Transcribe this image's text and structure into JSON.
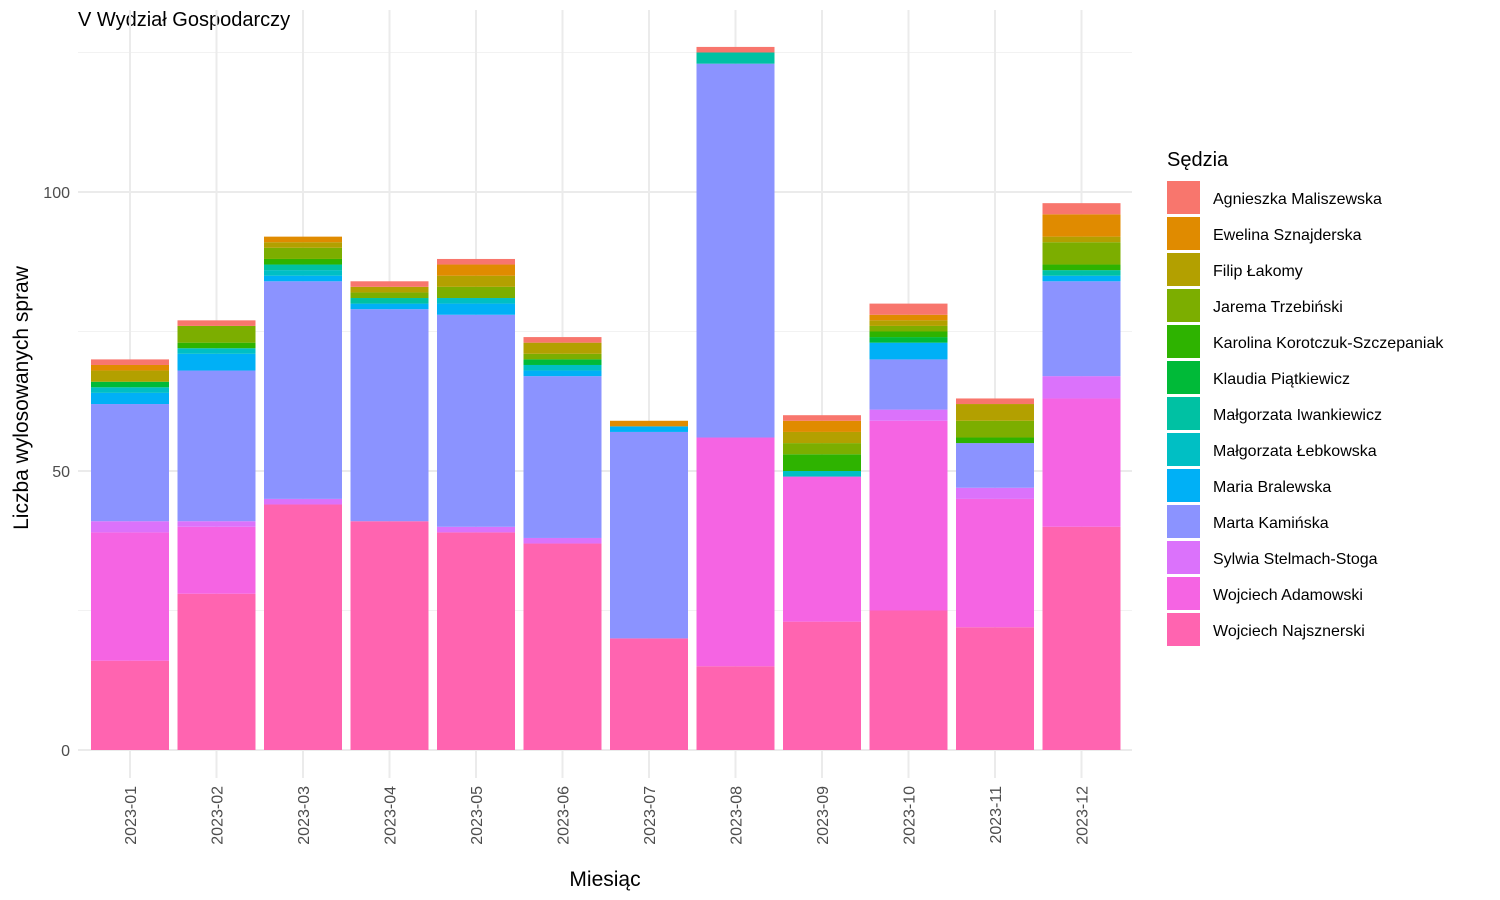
{
  "chart_data": {
    "type": "bar",
    "stacked": true,
    "title": "V Wydział Gospodarczy",
    "xlabel": "Miesiąc",
    "ylabel": "Liczba wylosowanych spraw",
    "ylim": [
      0,
      126
    ],
    "yticks": [
      0,
      50,
      100
    ],
    "grid": true,
    "legend_position": "right",
    "legend_title": "Sędzia",
    "categories": [
      "2023-01",
      "2023-02",
      "2023-03",
      "2023-04",
      "2023-05",
      "2023-06",
      "2023-07",
      "2023-08",
      "2023-09",
      "2023-10",
      "2023-11",
      "2023-12"
    ],
    "series": [
      {
        "name": "Wojciech Najsznerski",
        "color": "#FF64B0",
        "values": [
          16,
          28,
          44,
          41,
          39,
          37,
          20,
          15,
          23,
          25,
          22,
          40
        ]
      },
      {
        "name": "Wojciech Adamowski",
        "color": "#F564E3",
        "values": [
          23,
          12,
          0,
          0,
          0,
          0,
          0,
          41,
          26,
          34,
          23,
          23
        ]
      },
      {
        "name": "Sylwia Stelmach-Stoga",
        "color": "#DB72FB",
        "values": [
          2,
          1,
          1,
          0,
          1,
          1,
          0,
          0,
          0,
          2,
          2,
          4
        ]
      },
      {
        "name": "Marta Kamińska",
        "color": "#8B93FF",
        "values": [
          21,
          27,
          39,
          38,
          38,
          29,
          37,
          67,
          0,
          9,
          8,
          17
        ]
      },
      {
        "name": "Maria Bralewska",
        "color": "#00B0F6",
        "values": [
          2,
          3,
          1,
          1,
          2,
          1,
          1,
          0,
          0,
          3,
          0,
          1
        ]
      },
      {
        "name": "Małgorzata Łebkowska",
        "color": "#00BFC4",
        "values": [
          1,
          1,
          1,
          0,
          1,
          1,
          0,
          0,
          1,
          0,
          0,
          0
        ]
      },
      {
        "name": "Małgorzata Iwankiewicz",
        "color": "#00C1A3",
        "values": [
          0,
          0,
          1,
          1,
          0,
          0,
          0,
          2,
          0,
          0,
          0,
          1
        ]
      },
      {
        "name": "Klaudia Piątkiewicz",
        "color": "#00BA38",
        "values": [
          1,
          0,
          0,
          0,
          0,
          1,
          0,
          0,
          0,
          1,
          0,
          0
        ]
      },
      {
        "name": "Karolina Korotczuk-Szczepaniak",
        "color": "#2EB300",
        "values": [
          0,
          1,
          1,
          0,
          0,
          0,
          0,
          0,
          3,
          1,
          1,
          1
        ]
      },
      {
        "name": "Jarema Trzebiński",
        "color": "#7CAE00",
        "values": [
          0,
          3,
          2,
          1,
          2,
          1,
          0,
          0,
          2,
          1,
          3,
          4
        ]
      },
      {
        "name": "Filip Łakomy",
        "color": "#B3A000",
        "values": [
          2,
          0,
          1,
          1,
          2,
          2,
          0,
          0,
          2,
          1,
          3,
          1
        ]
      },
      {
        "name": "Ewelina Sznajderska",
        "color": "#E08B00",
        "values": [
          1,
          0,
          1,
          0,
          2,
          0,
          1,
          0,
          2,
          1,
          0,
          4
        ]
      },
      {
        "name": "Agnieszka Maliszewska",
        "color": "#F8766D",
        "values": [
          1,
          1,
          0,
          1,
          1,
          1,
          0,
          1,
          1,
          2,
          1,
          2
        ]
      }
    ]
  }
}
